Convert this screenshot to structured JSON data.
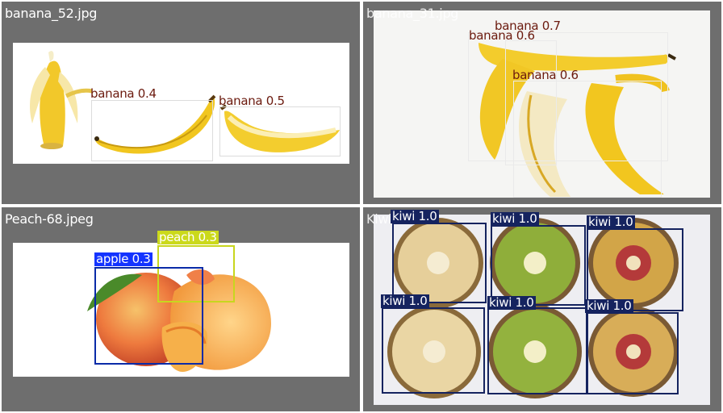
{
  "colors": {
    "panel_bg": "#6e6e6e",
    "banana_box": "#dcdcdc",
    "banana_text": "#6b1a0e",
    "apple_box": "#0a2ba8",
    "apple_tag": "#1434ff",
    "peach_box": "#c8d61e",
    "peach_tag": "#cbd91b",
    "kiwi_box": "#15235f",
    "kiwi_tag": "#15235f"
  },
  "panels": [
    {
      "filename": "banana_52.jpg",
      "detections": [
        {
          "label": "banana 0.4"
        },
        {
          "label": "banana 0.5"
        }
      ]
    },
    {
      "filename": "banana_31.jpg",
      "detections": [
        {
          "label": "banana 0.7"
        },
        {
          "label": "banana 0.6"
        },
        {
          "label": "banana 0.6"
        }
      ]
    },
    {
      "filename": "Peach-68.jpeg",
      "detections": [
        {
          "label": "peach 0.3"
        },
        {
          "label": "apple 0.3"
        }
      ]
    },
    {
      "filename": "Kiwi",
      "detections": [
        {
          "label": "kiwi 1.0"
        },
        {
          "label": "kiwi 1.0"
        },
        {
          "label": "kiwi 1.0"
        },
        {
          "label": "kiwi 1.0"
        },
        {
          "label": "kiwi 1.0"
        },
        {
          "label": "kiwi 1.0"
        }
      ]
    }
  ]
}
